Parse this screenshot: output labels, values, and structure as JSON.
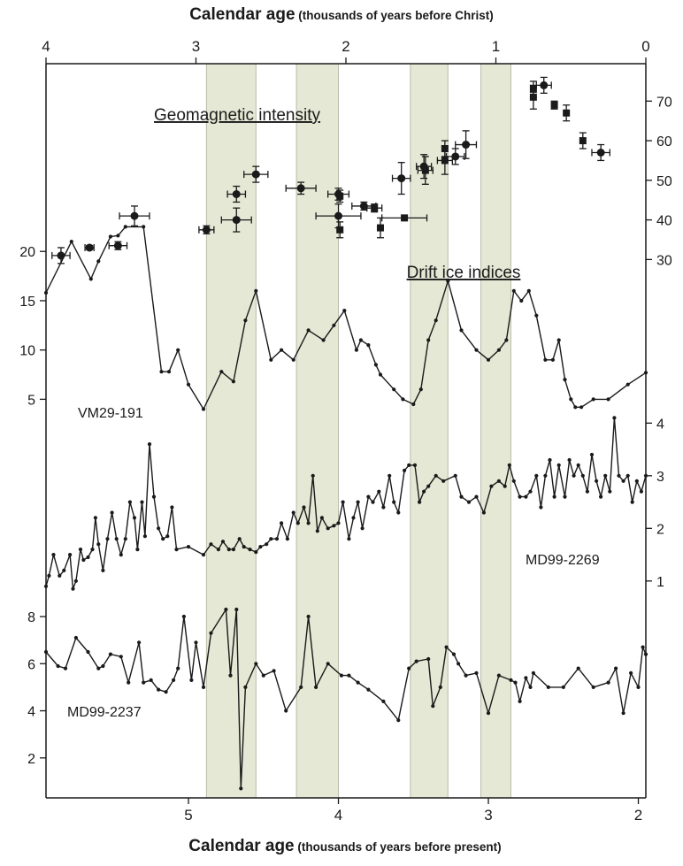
{
  "chart_data": {
    "type": "line",
    "top_axis": {
      "label_bold": "Calendar age",
      "label_rest": " (thousands of years before Christ)",
      "range": [
        4,
        0
      ],
      "ticks": [
        "4",
        "3",
        "2",
        "1",
        "0"
      ]
    },
    "bottom_axis": {
      "label_bold": "Calendar age",
      "label_rest": " (thousands of years before present)",
      "range": [
        5.95,
        1.95
      ],
      "ticks": [
        "5",
        "4",
        "3",
        "2"
      ]
    },
    "shaded_bands_ka_bp": [
      [
        4.88,
        4.55
      ],
      [
        4.28,
        4.0
      ],
      [
        3.52,
        3.27
      ],
      [
        3.05,
        2.85
      ]
    ],
    "band_color": "#e4e8d4",
    "geomagnetic": {
      "title": "Geomagnetic intensity",
      "axis_ticks": [
        30,
        40,
        50,
        60,
        70
      ],
      "axis_range": [
        24.5,
        79
      ],
      "circles": [
        {
          "x": 5.85,
          "y": 31,
          "xerr": 0.06,
          "yerr": 2
        },
        {
          "x": 5.66,
          "y": 33,
          "xerr": 0.03,
          "yerr": 0.5
        },
        {
          "x": 5.47,
          "y": 33.5,
          "xerr": 0.06,
          "yerr": 1
        },
        {
          "x": 5.36,
          "y": 41,
          "xerr": 0.1,
          "yerr": 2.5
        },
        {
          "x": 4.88,
          "y": 37.5,
          "xerr": 0.05,
          "yerr": 1
        },
        {
          "x": 4.68,
          "y": 46.5,
          "xerr": 0.06,
          "yerr": 2
        },
        {
          "x": 4.68,
          "y": 40,
          "xerr": 0.1,
          "yerr": 3
        },
        {
          "x": 4.55,
          "y": 51.5,
          "xerr": 0.08,
          "yerr": 2
        },
        {
          "x": 4.25,
          "y": 48,
          "xerr": 0.1,
          "yerr": 1.5
        },
        {
          "x": 4.0,
          "y": 46.5,
          "xerr": 0.07,
          "yerr": 1.5
        },
        {
          "x": 4.0,
          "y": 41,
          "xerr": 0.15,
          "yerr": 3
        },
        {
          "x": 3.83,
          "y": 43.5,
          "xerr": 0.08,
          "yerr": 1
        },
        {
          "x": 3.58,
          "y": 50.5,
          "xerr": 0.06,
          "yerr": 4
        },
        {
          "x": 3.43,
          "y": 53.5,
          "xerr": 0.05,
          "yerr": 3
        },
        {
          "x": 3.22,
          "y": 56,
          "xerr": 0.06,
          "yerr": 2
        },
        {
          "x": 3.15,
          "y": 59,
          "xerr": 0.07,
          "yerr": 3.5
        },
        {
          "x": 2.63,
          "y": 74,
          "xerr": 0.05,
          "yerr": 2
        },
        {
          "x": 2.25,
          "y": 57,
          "xerr": 0.06,
          "yerr": 2
        }
      ],
      "squares": [
        {
          "x": 3.99,
          "y": 46,
          "xerr": 0,
          "yerr": 1.5
        },
        {
          "x": 3.99,
          "y": 37.5,
          "xerr": 0,
          "yerr": 2
        },
        {
          "x": 3.76,
          "y": 43,
          "xerr": 0.05,
          "yerr": 1
        },
        {
          "x": 3.72,
          "y": 38,
          "xerr": 0,
          "yerr": 2.5
        },
        {
          "x": 3.56,
          "y": 40.5,
          "xerr": 0.15,
          "yerr": 0.5
        },
        {
          "x": 3.42,
          "y": 52.5,
          "xerr": 0.05,
          "yerr": 3.5
        },
        {
          "x": 3.29,
          "y": 58,
          "xerr": 0,
          "yerr": 2
        },
        {
          "x": 3.29,
          "y": 55,
          "xerr": 0.05,
          "yerr": 3.5
        },
        {
          "x": 2.7,
          "y": 73,
          "xerr": 0,
          "yerr": 2
        },
        {
          "x": 2.7,
          "y": 71,
          "xerr": 0,
          "yerr": 3
        },
        {
          "x": 2.56,
          "y": 69,
          "xerr": 0,
          "yerr": 1
        },
        {
          "x": 2.48,
          "y": 67,
          "xerr": 0,
          "yerr": 2
        },
        {
          "x": 2.37,
          "y": 60,
          "xerr": 0,
          "yerr": 2
        }
      ]
    },
    "drift_ice_title": "Drift ice indices",
    "vm29": {
      "name": "VM29-191",
      "axis_ticks": [
        5,
        10,
        15,
        20
      ],
      "axis_range": [
        -0.26,
        20.38
      ],
      "points": [
        [
          5.95,
          15.8
        ],
        [
          5.78,
          21
        ],
        [
          5.65,
          17.2
        ],
        [
          5.6,
          19
        ],
        [
          5.52,
          21.5
        ],
        [
          5.47,
          21.6
        ],
        [
          5.42,
          22.5
        ],
        [
          5.3,
          22.5
        ],
        [
          5.18,
          7.8
        ],
        [
          5.13,
          7.8
        ],
        [
          5.07,
          10
        ],
        [
          5.0,
          6.5
        ],
        [
          4.9,
          4
        ],
        [
          4.78,
          7.8
        ],
        [
          4.7,
          6.8
        ],
        [
          4.62,
          13
        ],
        [
          4.55,
          16
        ],
        [
          4.45,
          9
        ],
        [
          4.38,
          10
        ],
        [
          4.3,
          9
        ],
        [
          4.2,
          12
        ],
        [
          4.1,
          11
        ],
        [
          4.03,
          12.5
        ],
        [
          3.96,
          14
        ],
        [
          3.88,
          10
        ],
        [
          3.85,
          11
        ],
        [
          3.8,
          10.5
        ],
        [
          3.75,
          8.5
        ],
        [
          3.72,
          7.5
        ],
        [
          3.63,
          6
        ],
        [
          3.57,
          5
        ],
        [
          3.5,
          4.5
        ],
        [
          3.45,
          6
        ],
        [
          3.4,
          11
        ],
        [
          3.35,
          13
        ],
        [
          3.27,
          17
        ],
        [
          3.18,
          12
        ],
        [
          3.08,
          10
        ],
        [
          3.0,
          9
        ],
        [
          2.93,
          10
        ],
        [
          2.88,
          11
        ],
        [
          2.83,
          16
        ],
        [
          2.78,
          15
        ],
        [
          2.73,
          16
        ],
        [
          2.68,
          13.5
        ],
        [
          2.62,
          9
        ],
        [
          2.57,
          9
        ],
        [
          2.53,
          11
        ],
        [
          2.49,
          7
        ],
        [
          2.45,
          5
        ],
        [
          2.42,
          4.2
        ],
        [
          2.38,
          4.2
        ],
        [
          2.3,
          5
        ],
        [
          2.2,
          5
        ],
        [
          2.07,
          6.5
        ],
        [
          1.95,
          7.7
        ]
      ]
    },
    "md2269": {
      "name": "MD99-2269",
      "axis_ticks": [
        1,
        2,
        3,
        4
      ],
      "axis_range": [
        0.19,
        4.14
      ],
      "points": [
        [
          5.95,
          0.9
        ],
        [
          5.93,
          1.1
        ],
        [
          5.9,
          1.5
        ],
        [
          5.86,
          1.1
        ],
        [
          5.83,
          1.2
        ],
        [
          5.79,
          1.5
        ],
        [
          5.77,
          0.85
        ],
        [
          5.75,
          1.0
        ],
        [
          5.72,
          1.6
        ],
        [
          5.7,
          1.4
        ],
        [
          5.67,
          1.45
        ],
        [
          5.64,
          1.6
        ],
        [
          5.62,
          2.2
        ],
        [
          5.6,
          1.7
        ],
        [
          5.57,
          1.2
        ],
        [
          5.54,
          1.8
        ],
        [
          5.51,
          2.3
        ],
        [
          5.48,
          1.8
        ],
        [
          5.45,
          1.5
        ],
        [
          5.42,
          1.8
        ],
        [
          5.39,
          2.5
        ],
        [
          5.36,
          2.2
        ],
        [
          5.34,
          1.6
        ],
        [
          5.31,
          2.5
        ],
        [
          5.29,
          1.85
        ],
        [
          5.26,
          3.6
        ],
        [
          5.23,
          2.6
        ],
        [
          5.2,
          2.0
        ],
        [
          5.17,
          1.8
        ],
        [
          5.14,
          1.85
        ],
        [
          5.11,
          2.4
        ],
        [
          5.08,
          1.6
        ],
        [
          5.0,
          1.65
        ],
        [
          4.9,
          1.5
        ],
        [
          4.85,
          1.7
        ],
        [
          4.8,
          1.6
        ],
        [
          4.77,
          1.75
        ],
        [
          4.73,
          1.6
        ],
        [
          4.7,
          1.6
        ],
        [
          4.66,
          1.8
        ],
        [
          4.63,
          1.65
        ],
        [
          4.59,
          1.6
        ],
        [
          4.55,
          1.55
        ],
        [
          4.52,
          1.65
        ],
        [
          4.48,
          1.7
        ],
        [
          4.45,
          1.8
        ],
        [
          4.41,
          1.8
        ],
        [
          4.38,
          2.1
        ],
        [
          4.34,
          1.8
        ],
        [
          4.3,
          2.3
        ],
        [
          4.27,
          2.1
        ],
        [
          4.23,
          2.4
        ],
        [
          4.2,
          2.1
        ],
        [
          4.17,
          3.0
        ],
        [
          4.14,
          1.95
        ],
        [
          4.11,
          2.2
        ],
        [
          4.07,
          2.0
        ],
        [
          4.03,
          2.05
        ],
        [
          4.0,
          2.1
        ],
        [
          3.97,
          2.5
        ],
        [
          3.93,
          1.8
        ],
        [
          3.9,
          2.2
        ],
        [
          3.87,
          2.5
        ],
        [
          3.84,
          2.0
        ],
        [
          3.8,
          2.6
        ],
        [
          3.77,
          2.5
        ],
        [
          3.73,
          2.7
        ],
        [
          3.7,
          2.4
        ],
        [
          3.66,
          3.0
        ],
        [
          3.63,
          2.5
        ],
        [
          3.6,
          2.3
        ],
        [
          3.56,
          3.1
        ],
        [
          3.53,
          3.2
        ],
        [
          3.49,
          3.2
        ],
        [
          3.46,
          2.5
        ],
        [
          3.43,
          2.7
        ],
        [
          3.4,
          2.8
        ],
        [
          3.35,
          3.0
        ],
        [
          3.3,
          2.9
        ],
        [
          3.22,
          3.0
        ],
        [
          3.18,
          2.6
        ],
        [
          3.13,
          2.5
        ],
        [
          3.08,
          2.6
        ],
        [
          3.03,
          2.3
        ],
        [
          2.98,
          2.8
        ],
        [
          2.93,
          2.9
        ],
        [
          2.89,
          2.8
        ],
        [
          2.86,
          3.2
        ],
        [
          2.83,
          2.9
        ],
        [
          2.79,
          2.6
        ],
        [
          2.75,
          2.6
        ],
        [
          2.72,
          2.7
        ],
        [
          2.68,
          3.0
        ],
        [
          2.65,
          2.4
        ],
        [
          2.62,
          3.0
        ],
        [
          2.59,
          3.3
        ],
        [
          2.56,
          2.6
        ],
        [
          2.53,
          3.2
        ],
        [
          2.49,
          2.6
        ],
        [
          2.46,
          3.3
        ],
        [
          2.43,
          3.0
        ],
        [
          2.4,
          3.2
        ],
        [
          2.37,
          3.0
        ],
        [
          2.34,
          2.7
        ],
        [
          2.31,
          3.4
        ],
        [
          2.28,
          2.9
        ],
        [
          2.25,
          2.6
        ],
        [
          2.22,
          3.0
        ],
        [
          2.19,
          2.7
        ],
        [
          2.16,
          4.1
        ],
        [
          2.13,
          3.0
        ],
        [
          2.1,
          2.9
        ],
        [
          2.07,
          3.0
        ],
        [
          2.04,
          2.5
        ],
        [
          2.01,
          2.9
        ],
        [
          1.98,
          2.7
        ],
        [
          1.95,
          3.0
        ]
      ]
    },
    "md2237": {
      "name": "MD99-2237",
      "axis_ticks": [
        2,
        4,
        6,
        8
      ],
      "axis_range": [
        0.19,
        8.94
      ],
      "points": [
        [
          5.95,
          6.5
        ],
        [
          5.87,
          5.9
        ],
        [
          5.82,
          5.8
        ],
        [
          5.75,
          7.1
        ],
        [
          5.67,
          6.5
        ],
        [
          5.6,
          5.8
        ],
        [
          5.57,
          5.9
        ],
        [
          5.52,
          6.4
        ],
        [
          5.45,
          6.3
        ],
        [
          5.4,
          5.2
        ],
        [
          5.33,
          6.9
        ],
        [
          5.3,
          5.2
        ],
        [
          5.25,
          5.3
        ],
        [
          5.2,
          4.9
        ],
        [
          5.15,
          4.8
        ],
        [
          5.1,
          5.3
        ],
        [
          5.07,
          5.8
        ],
        [
          5.03,
          8.0
        ],
        [
          4.98,
          5.3
        ],
        [
          4.95,
          6.9
        ],
        [
          4.9,
          5.0
        ],
        [
          4.85,
          7.3
        ],
        [
          4.75,
          8.3
        ],
        [
          4.72,
          5.5
        ],
        [
          4.68,
          8.3
        ],
        [
          4.65,
          0.7
        ],
        [
          4.62,
          5.0
        ],
        [
          4.55,
          6.0
        ],
        [
          4.5,
          5.5
        ],
        [
          4.43,
          5.7
        ],
        [
          4.35,
          4.0
        ],
        [
          4.25,
          5.0
        ],
        [
          4.2,
          8.0
        ],
        [
          4.15,
          5.0
        ],
        [
          4.07,
          6.0
        ],
        [
          3.98,
          5.5
        ],
        [
          3.93,
          5.5
        ],
        [
          3.87,
          5.2
        ],
        [
          3.8,
          4.9
        ],
        [
          3.7,
          4.4
        ],
        [
          3.6,
          3.6
        ],
        [
          3.53,
          5.8
        ],
        [
          3.48,
          6.1
        ],
        [
          3.4,
          6.2
        ],
        [
          3.37,
          4.2
        ],
        [
          3.32,
          5.0
        ],
        [
          3.28,
          6.7
        ],
        [
          3.23,
          6.4
        ],
        [
          3.2,
          6.0
        ],
        [
          3.15,
          5.5
        ],
        [
          3.08,
          5.6
        ],
        [
          3.0,
          3.9
        ],
        [
          2.93,
          5.5
        ],
        [
          2.85,
          5.3
        ],
        [
          2.82,
          5.2
        ],
        [
          2.79,
          4.4
        ],
        [
          2.75,
          5.4
        ],
        [
          2.72,
          5.0
        ],
        [
          2.7,
          5.6
        ],
        [
          2.6,
          5.0
        ],
        [
          2.5,
          5.0
        ],
        [
          2.4,
          5.8
        ],
        [
          2.3,
          5.0
        ],
        [
          2.2,
          5.2
        ],
        [
          2.15,
          5.8
        ],
        [
          2.1,
          3.9
        ],
        [
          2.05,
          5.6
        ],
        [
          2.0,
          5.0
        ],
        [
          1.97,
          6.7
        ],
        [
          1.95,
          6.4
        ]
      ]
    }
  }
}
